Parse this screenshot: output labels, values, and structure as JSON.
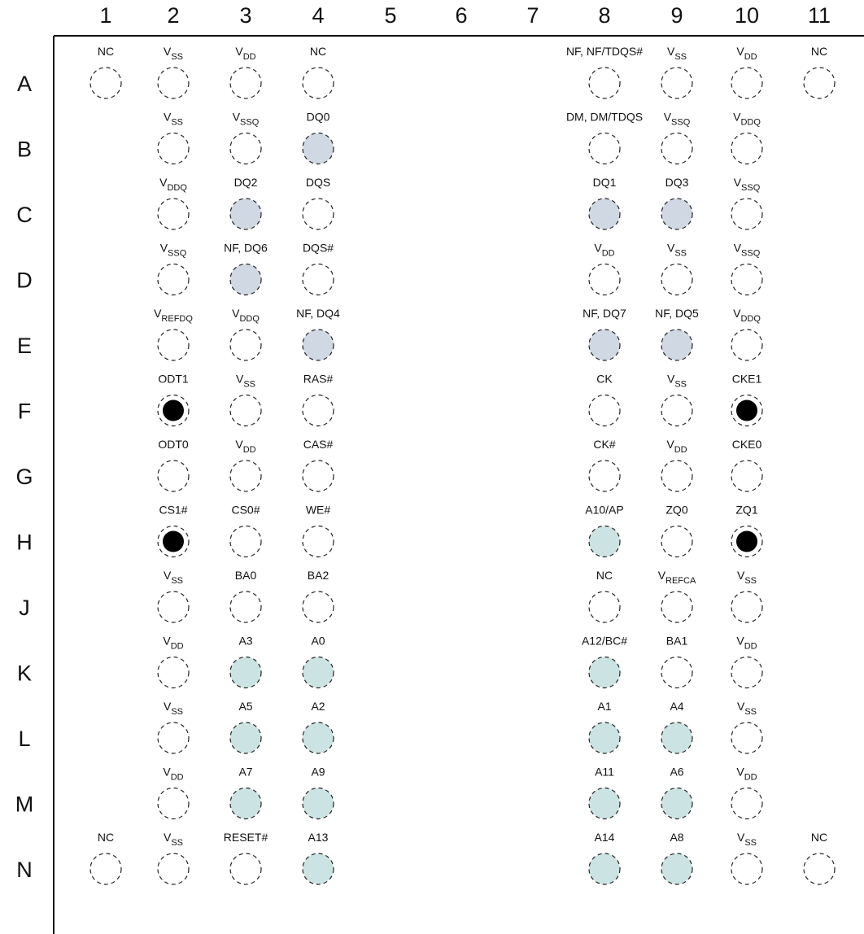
{
  "columns": [
    "1",
    "2",
    "3",
    "4",
    "5",
    "6",
    "7",
    "8",
    "9",
    "10",
    "11"
  ],
  "rows": [
    "A",
    "B",
    "C",
    "D",
    "E",
    "F",
    "G",
    "H",
    "J",
    "K",
    "L",
    "M",
    "N"
  ],
  "colors": {
    "data_fill": "#cfd8e3",
    "address_fill": "#cce3e3",
    "filled_ball": "#000000",
    "outline": "#222222"
  },
  "pins": [
    {
      "row": "A",
      "col": "1",
      "main": "NC",
      "sub": "",
      "type": "empty"
    },
    {
      "row": "A",
      "col": "2",
      "main": "V",
      "sub": "SS",
      "type": "empty"
    },
    {
      "row": "A",
      "col": "3",
      "main": "V",
      "sub": "DD",
      "type": "empty"
    },
    {
      "row": "A",
      "col": "4",
      "main": "NC",
      "sub": "",
      "type": "empty"
    },
    {
      "row": "A",
      "col": "8",
      "main": "NF, NF/TDQS#",
      "sub": "",
      "type": "empty"
    },
    {
      "row": "A",
      "col": "9",
      "main": "V",
      "sub": "SS",
      "type": "empty"
    },
    {
      "row": "A",
      "col": "10",
      "main": "V",
      "sub": "DD",
      "type": "empty"
    },
    {
      "row": "A",
      "col": "11",
      "main": "NC",
      "sub": "",
      "type": "empty"
    },
    {
      "row": "B",
      "col": "2",
      "main": "V",
      "sub": "SS",
      "type": "empty"
    },
    {
      "row": "B",
      "col": "3",
      "main": "V",
      "sub": "SSQ",
      "type": "empty"
    },
    {
      "row": "B",
      "col": "4",
      "main": "DQ0",
      "sub": "",
      "type": "data"
    },
    {
      "row": "B",
      "col": "8",
      "main": "DM, DM/TDQS",
      "sub": "",
      "type": "empty"
    },
    {
      "row": "B",
      "col": "9",
      "main": "V",
      "sub": "SSQ",
      "type": "empty"
    },
    {
      "row": "B",
      "col": "10",
      "main": "V",
      "sub": "DDQ",
      "type": "empty"
    },
    {
      "row": "C",
      "col": "2",
      "main": "V",
      "sub": "DDQ",
      "type": "empty"
    },
    {
      "row": "C",
      "col": "3",
      "main": "DQ2",
      "sub": "",
      "type": "data"
    },
    {
      "row": "C",
      "col": "4",
      "main": "DQS",
      "sub": "",
      "type": "empty"
    },
    {
      "row": "C",
      "col": "8",
      "main": "DQ1",
      "sub": "",
      "type": "data"
    },
    {
      "row": "C",
      "col": "9",
      "main": "DQ3",
      "sub": "",
      "type": "data"
    },
    {
      "row": "C",
      "col": "10",
      "main": "V",
      "sub": "SSQ",
      "type": "empty"
    },
    {
      "row": "D",
      "col": "2",
      "main": "V",
      "sub": "SSQ",
      "type": "empty"
    },
    {
      "row": "D",
      "col": "3",
      "main": "NF, DQ6",
      "sub": "",
      "type": "data"
    },
    {
      "row": "D",
      "col": "4",
      "main": "DQS#",
      "sub": "",
      "type": "empty"
    },
    {
      "row": "D",
      "col": "8",
      "main": "V",
      "sub": "DD",
      "type": "empty"
    },
    {
      "row": "D",
      "col": "9",
      "main": "V",
      "sub": "SS",
      "type": "empty"
    },
    {
      "row": "D",
      "col": "10",
      "main": "V",
      "sub": "SSQ",
      "type": "empty"
    },
    {
      "row": "E",
      "col": "2",
      "main": "V",
      "sub": "REFDQ",
      "type": "empty"
    },
    {
      "row": "E",
      "col": "3",
      "main": "V",
      "sub": "DDQ",
      "type": "empty"
    },
    {
      "row": "E",
      "col": "4",
      "main": "NF, DQ4",
      "sub": "",
      "type": "data"
    },
    {
      "row": "E",
      "col": "8",
      "main": "NF, DQ7",
      "sub": "",
      "type": "data"
    },
    {
      "row": "E",
      "col": "9",
      "main": "NF, DQ5",
      "sub": "",
      "type": "data"
    },
    {
      "row": "E",
      "col": "10",
      "main": "V",
      "sub": "DDQ",
      "type": "empty"
    },
    {
      "row": "F",
      "col": "2",
      "main": "ODT1",
      "sub": "",
      "type": "filled"
    },
    {
      "row": "F",
      "col": "3",
      "main": "V",
      "sub": "SS",
      "type": "empty"
    },
    {
      "row": "F",
      "col": "4",
      "main": "RAS#",
      "sub": "",
      "type": "empty"
    },
    {
      "row": "F",
      "col": "8",
      "main": "CK",
      "sub": "",
      "type": "empty"
    },
    {
      "row": "F",
      "col": "9",
      "main": "V",
      "sub": "SS",
      "type": "empty"
    },
    {
      "row": "F",
      "col": "10",
      "main": "CKE1",
      "sub": "",
      "type": "filled"
    },
    {
      "row": "G",
      "col": "2",
      "main": "ODT0",
      "sub": "",
      "type": "empty"
    },
    {
      "row": "G",
      "col": "3",
      "main": "V",
      "sub": "DD",
      "type": "empty"
    },
    {
      "row": "G",
      "col": "4",
      "main": "CAS#",
      "sub": "",
      "type": "empty"
    },
    {
      "row": "G",
      "col": "8",
      "main": "CK#",
      "sub": "",
      "type": "empty"
    },
    {
      "row": "G",
      "col": "9",
      "main": "V",
      "sub": "DD",
      "type": "empty"
    },
    {
      "row": "G",
      "col": "10",
      "main": "CKE0",
      "sub": "",
      "type": "empty"
    },
    {
      "row": "H",
      "col": "2",
      "main": "CS1#",
      "sub": "",
      "type": "filled"
    },
    {
      "row": "H",
      "col": "3",
      "main": "CS0#",
      "sub": "",
      "type": "empty"
    },
    {
      "row": "H",
      "col": "4",
      "main": "WE#",
      "sub": "",
      "type": "empty"
    },
    {
      "row": "H",
      "col": "8",
      "main": "A10/AP",
      "sub": "",
      "type": "address"
    },
    {
      "row": "H",
      "col": "9",
      "main": "ZQ0",
      "sub": "",
      "type": "empty"
    },
    {
      "row": "H",
      "col": "10",
      "main": "ZQ1",
      "sub": "",
      "type": "filled"
    },
    {
      "row": "J",
      "col": "2",
      "main": "V",
      "sub": "SS",
      "type": "empty"
    },
    {
      "row": "J",
      "col": "3",
      "main": "BA0",
      "sub": "",
      "type": "empty"
    },
    {
      "row": "J",
      "col": "4",
      "main": "BA2",
      "sub": "",
      "type": "empty"
    },
    {
      "row": "J",
      "col": "8",
      "main": "NC",
      "sub": "",
      "type": "empty"
    },
    {
      "row": "J",
      "col": "9",
      "main": "V",
      "sub": "REFCA",
      "type": "empty"
    },
    {
      "row": "J",
      "col": "10",
      "main": "V",
      "sub": "SS",
      "type": "empty"
    },
    {
      "row": "K",
      "col": "2",
      "main": "V",
      "sub": "DD",
      "type": "empty"
    },
    {
      "row": "K",
      "col": "3",
      "main": "A3",
      "sub": "",
      "type": "address"
    },
    {
      "row": "K",
      "col": "4",
      "main": "A0",
      "sub": "",
      "type": "address"
    },
    {
      "row": "K",
      "col": "8",
      "main": "A12/BC#",
      "sub": "",
      "type": "address"
    },
    {
      "row": "K",
      "col": "9",
      "main": "BA1",
      "sub": "",
      "type": "empty"
    },
    {
      "row": "K",
      "col": "10",
      "main": "V",
      "sub": "DD",
      "type": "empty"
    },
    {
      "row": "L",
      "col": "2",
      "main": "V",
      "sub": "SS",
      "type": "empty"
    },
    {
      "row": "L",
      "col": "3",
      "main": "A5",
      "sub": "",
      "type": "address"
    },
    {
      "row": "L",
      "col": "4",
      "main": "A2",
      "sub": "",
      "type": "address"
    },
    {
      "row": "L",
      "col": "8",
      "main": "A1",
      "sub": "",
      "type": "address"
    },
    {
      "row": "L",
      "col": "9",
      "main": "A4",
      "sub": "",
      "type": "address"
    },
    {
      "row": "L",
      "col": "10",
      "main": "V",
      "sub": "SS",
      "type": "empty"
    },
    {
      "row": "M",
      "col": "2",
      "main": "V",
      "sub": "DD",
      "type": "empty"
    },
    {
      "row": "M",
      "col": "3",
      "main": "A7",
      "sub": "",
      "type": "address"
    },
    {
      "row": "M",
      "col": "4",
      "main": "A9",
      "sub": "",
      "type": "address"
    },
    {
      "row": "M",
      "col": "8",
      "main": "A11",
      "sub": "",
      "type": "address"
    },
    {
      "row": "M",
      "col": "9",
      "main": "A6",
      "sub": "",
      "type": "address"
    },
    {
      "row": "M",
      "col": "10",
      "main": "V",
      "sub": "DD",
      "type": "empty"
    },
    {
      "row": "N",
      "col": "1",
      "main": "NC",
      "sub": "",
      "type": "empty"
    },
    {
      "row": "N",
      "col": "2",
      "main": "V",
      "sub": "SS",
      "type": "empty"
    },
    {
      "row": "N",
      "col": "3",
      "main": "RESET#",
      "sub": "",
      "type": "empty"
    },
    {
      "row": "N",
      "col": "4",
      "main": "A13",
      "sub": "",
      "type": "address"
    },
    {
      "row": "N",
      "col": "8",
      "main": "A14",
      "sub": "",
      "type": "address"
    },
    {
      "row": "N",
      "col": "9",
      "main": "A8",
      "sub": "",
      "type": "address"
    },
    {
      "row": "N",
      "col": "10",
      "main": "V",
      "sub": "SS",
      "type": "empty"
    },
    {
      "row": "N",
      "col": "11",
      "main": "NC",
      "sub": "",
      "type": "empty"
    }
  ]
}
